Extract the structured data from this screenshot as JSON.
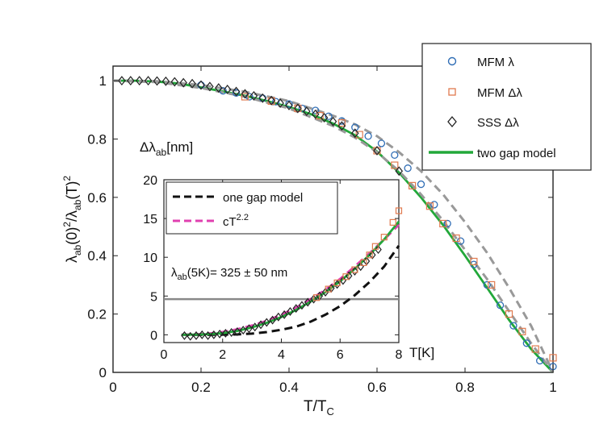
{
  "chart_data": [
    {
      "type": "scatter",
      "title": "",
      "xlabel": "T/T",
      "xlabel_sub": "C",
      "ylabel_parts": [
        "λ",
        "ab",
        "(0)",
        "2",
        "/λ",
        "ab",
        "(T)",
        "2"
      ],
      "xlim": [
        0,
        1
      ],
      "ylim": [
        0,
        1.05
      ],
      "xticks": [
        0,
        0.2,
        0.4,
        0.6,
        0.8,
        1
      ],
      "xtick_labels": [
        "0",
        "0.2",
        "0.4",
        "0.6",
        "0.8",
        "1"
      ],
      "yticks": [
        0,
        0.2,
        0.4,
        0.6,
        0.8,
        1
      ],
      "ytick_labels": [
        "0",
        "0.2",
        "0.4",
        "0.6",
        "0.8",
        "1"
      ],
      "legend_position": "top-right",
      "legend": [
        {
          "label": "MFM λ",
          "marker": "circle",
          "color": "#2f6db5"
        },
        {
          "label": "MFM Δλ",
          "marker": "square",
          "color": "#e07a4f"
        },
        {
          "label": "SSS Δλ",
          "marker": "diamond",
          "color": "#222222"
        },
        {
          "label": "two gap model",
          "marker": "line",
          "color": "#22a83a"
        }
      ],
      "series": [
        {
          "name": "two gap model",
          "color": "#22a83a",
          "x": [
            0,
            0.05,
            0.1,
            0.15,
            0.2,
            0.25,
            0.3,
            0.35,
            0.4,
            0.45,
            0.5,
            0.55,
            0.6,
            0.65,
            0.7,
            0.75,
            0.8,
            0.85,
            0.9,
            0.95,
            1
          ],
          "y": [
            1.0,
            1.0,
            0.997,
            0.99,
            0.977,
            0.963,
            0.948,
            0.93,
            0.91,
            0.885,
            0.853,
            0.813,
            0.757,
            0.685,
            0.6,
            0.505,
            0.4,
            0.29,
            0.18,
            0.08,
            0.0
          ]
        },
        {
          "name": "one gap bound upper",
          "color": "#999999",
          "dashed": true,
          "x": [
            0,
            0.1,
            0.2,
            0.3,
            0.4,
            0.5,
            0.55,
            0.6,
            0.65,
            0.7,
            0.75,
            0.8,
            0.85,
            0.9,
            0.95,
            1
          ],
          "y": [
            1.0,
            0.998,
            0.985,
            0.962,
            0.93,
            0.88,
            0.85,
            0.81,
            0.755,
            0.69,
            0.61,
            0.515,
            0.41,
            0.29,
            0.16,
            0.0
          ]
        },
        {
          "name": "one gap bound lower",
          "color": "#999999",
          "dashed": true,
          "x": [
            0,
            0.1,
            0.2,
            0.3,
            0.4,
            0.5,
            0.55,
            0.6,
            0.65,
            0.7,
            0.75,
            0.8,
            0.85,
            0.9,
            0.95,
            1
          ],
          "y": [
            1.0,
            0.995,
            0.975,
            0.945,
            0.905,
            0.845,
            0.805,
            0.755,
            0.69,
            0.61,
            0.52,
            0.42,
            0.32,
            0.21,
            0.1,
            0.0
          ]
        },
        {
          "name": "MFM λ",
          "marker": "circle",
          "color": "#2f6db5",
          "x": [
            0.2,
            0.25,
            0.28,
            0.31,
            0.34,
            0.37,
            0.4,
            0.43,
            0.46,
            0.49,
            0.52,
            0.55,
            0.58,
            0.61,
            0.64,
            0.67,
            0.7,
            0.73,
            0.76,
            0.79,
            0.82,
            0.85,
            0.88,
            0.91,
            0.94,
            0.97,
            1.0
          ],
          "y": [
            0.985,
            0.965,
            0.958,
            0.945,
            0.94,
            0.928,
            0.92,
            0.905,
            0.898,
            0.878,
            0.862,
            0.84,
            0.81,
            0.785,
            0.745,
            0.7,
            0.645,
            0.575,
            0.51,
            0.45,
            0.37,
            0.3,
            0.23,
            0.16,
            0.1,
            0.04,
            0.02
          ]
        },
        {
          "name": "MFM Δλ",
          "marker": "square",
          "color": "#e07a4f",
          "x": [
            0.3,
            0.36,
            0.42,
            0.47,
            0.52,
            0.56,
            0.6,
            0.64,
            0.68,
            0.72,
            0.75,
            0.78,
            0.82,
            0.86,
            0.9,
            0.93,
            0.96,
            1.0
          ],
          "y": [
            0.945,
            0.93,
            0.905,
            0.88,
            0.855,
            0.815,
            0.76,
            0.71,
            0.64,
            0.57,
            0.51,
            0.46,
            0.38,
            0.3,
            0.2,
            0.14,
            0.08,
            0.05
          ]
        },
        {
          "name": "SSS Δλ",
          "marker": "diamond",
          "color": "#222222",
          "x": [
            0.02,
            0.04,
            0.06,
            0.08,
            0.1,
            0.12,
            0.14,
            0.16,
            0.18,
            0.2,
            0.22,
            0.24,
            0.26,
            0.28,
            0.3,
            0.32,
            0.34,
            0.36,
            0.38,
            0.4,
            0.42,
            0.44,
            0.46,
            0.48,
            0.5,
            0.52,
            0.55,
            0.6,
            0.65
          ],
          "y": [
            1.0,
            1.0,
            1.0,
            1.0,
            0.999,
            0.998,
            0.996,
            0.993,
            0.99,
            0.985,
            0.98,
            0.975,
            0.97,
            0.963,
            0.955,
            0.948,
            0.94,
            0.932,
            0.923,
            0.915,
            0.905,
            0.895,
            0.885,
            0.873,
            0.86,
            0.845,
            0.82,
            0.76,
            0.69
          ]
        }
      ]
    },
    {
      "type": "scatter",
      "title": "",
      "ylabel_main": "Δλ",
      "ylabel_sub": "ab",
      "ylabel_unit": "[nm]",
      "xlabel": "T[K]",
      "xlim": [
        0,
        8
      ],
      "ylim": [
        -1,
        20
      ],
      "xticks": [
        0,
        2,
        4,
        6,
        8
      ],
      "xtick_labels": [
        "0",
        "2",
        "4",
        "6",
        "8"
      ],
      "yticks": [
        0,
        5,
        10,
        15,
        20
      ],
      "ytick_labels": [
        "0",
        "5",
        "10",
        "15",
        "20"
      ],
      "legend_position": "top-left",
      "legend": [
        {
          "label": "one gap model",
          "style": "dashed",
          "color": "#111111"
        },
        {
          "label": "cT",
          "sup": "2.2",
          "style": "dashed",
          "color": "#e040b0"
        }
      ],
      "annotation": {
        "main": "λ",
        "sub": "ab",
        "rest": "(5K)= 325 ± 50 nm"
      },
      "hline_y": 4.6,
      "series": [
        {
          "name": "one gap model",
          "color": "#111111",
          "dashed": true,
          "x": [
            0.6,
            1.5,
            2.5,
            3.0,
            3.5,
            4.0,
            4.5,
            5.0,
            5.5,
            6.0,
            6.5,
            7.0,
            7.5,
            8.0
          ],
          "y": [
            0,
            0,
            0.05,
            0.15,
            0.35,
            0.65,
            1.05,
            1.7,
            2.6,
            3.7,
            5.1,
            6.8,
            8.8,
            11.5
          ]
        },
        {
          "name": "cT^2.2",
          "color": "#e040b0",
          "dashed": true,
          "x": [
            0.6,
            1.0,
            1.5,
            2.0,
            2.5,
            3.0,
            3.5,
            4.0,
            4.5,
            5.0,
            5.5,
            6.0,
            6.5,
            7.0,
            7.5,
            8.0
          ],
          "y": [
            0,
            0.05,
            0.15,
            0.35,
            0.7,
            1.2,
            1.8,
            2.6,
            3.5,
            4.6,
            5.8,
            7.2,
            8.8,
            10.5,
            12.3,
            14.2
          ]
        },
        {
          "name": "two gap model",
          "color": "#22a83a",
          "x": [
            0.6,
            1.0,
            1.5,
            2.0,
            2.5,
            3.0,
            3.5,
            4.0,
            4.5,
            5.0,
            5.5,
            6.0,
            6.5,
            7.0,
            7.5,
            8.0
          ],
          "y": [
            0,
            0.02,
            0.08,
            0.22,
            0.5,
            0.95,
            1.55,
            2.3,
            3.2,
            4.3,
            5.5,
            6.9,
            8.5,
            10.3,
            12.3,
            14.6
          ]
        },
        {
          "name": "SSS Δλ",
          "marker": "diamond",
          "color": "#222222",
          "x": [
            0.7,
            0.9,
            1.1,
            1.3,
            1.5,
            1.7,
            1.9,
            2.1,
            2.3,
            2.5,
            2.7,
            2.9,
            3.1,
            3.3,
            3.5,
            3.7,
            3.9,
            4.1,
            4.3,
            4.5,
            4.7,
            4.9,
            5.1,
            5.3,
            5.5,
            5.7,
            5.9,
            6.1,
            6.3,
            6.5,
            6.7,
            6.9,
            7.1,
            7.3
          ],
          "y": [
            -0.1,
            -0.2,
            -0.1,
            0,
            -0.1,
            0,
            0.1,
            0.2,
            0.3,
            0.4,
            0.6,
            0.8,
            1.0,
            1.3,
            1.6,
            1.9,
            2.3,
            2.6,
            3.0,
            3.4,
            3.8,
            4.2,
            4.6,
            5.0,
            5.5,
            6.0,
            6.5,
            7.0,
            7.6,
            8.2,
            8.8,
            9.5,
            10.3,
            11.0
          ]
        },
        {
          "name": "MFM Δλ",
          "marker": "square",
          "color": "#e07a4f",
          "x": [
            5.2,
            5.6,
            5.9,
            6.2,
            6.5,
            6.8,
            7.0,
            7.2,
            7.5,
            7.8,
            8.0
          ],
          "y": [
            4.8,
            5.9,
            6.7,
            7.5,
            8.4,
            9.3,
            10.3,
            11.4,
            12.6,
            14.5,
            16.0
          ]
        }
      ]
    }
  ]
}
